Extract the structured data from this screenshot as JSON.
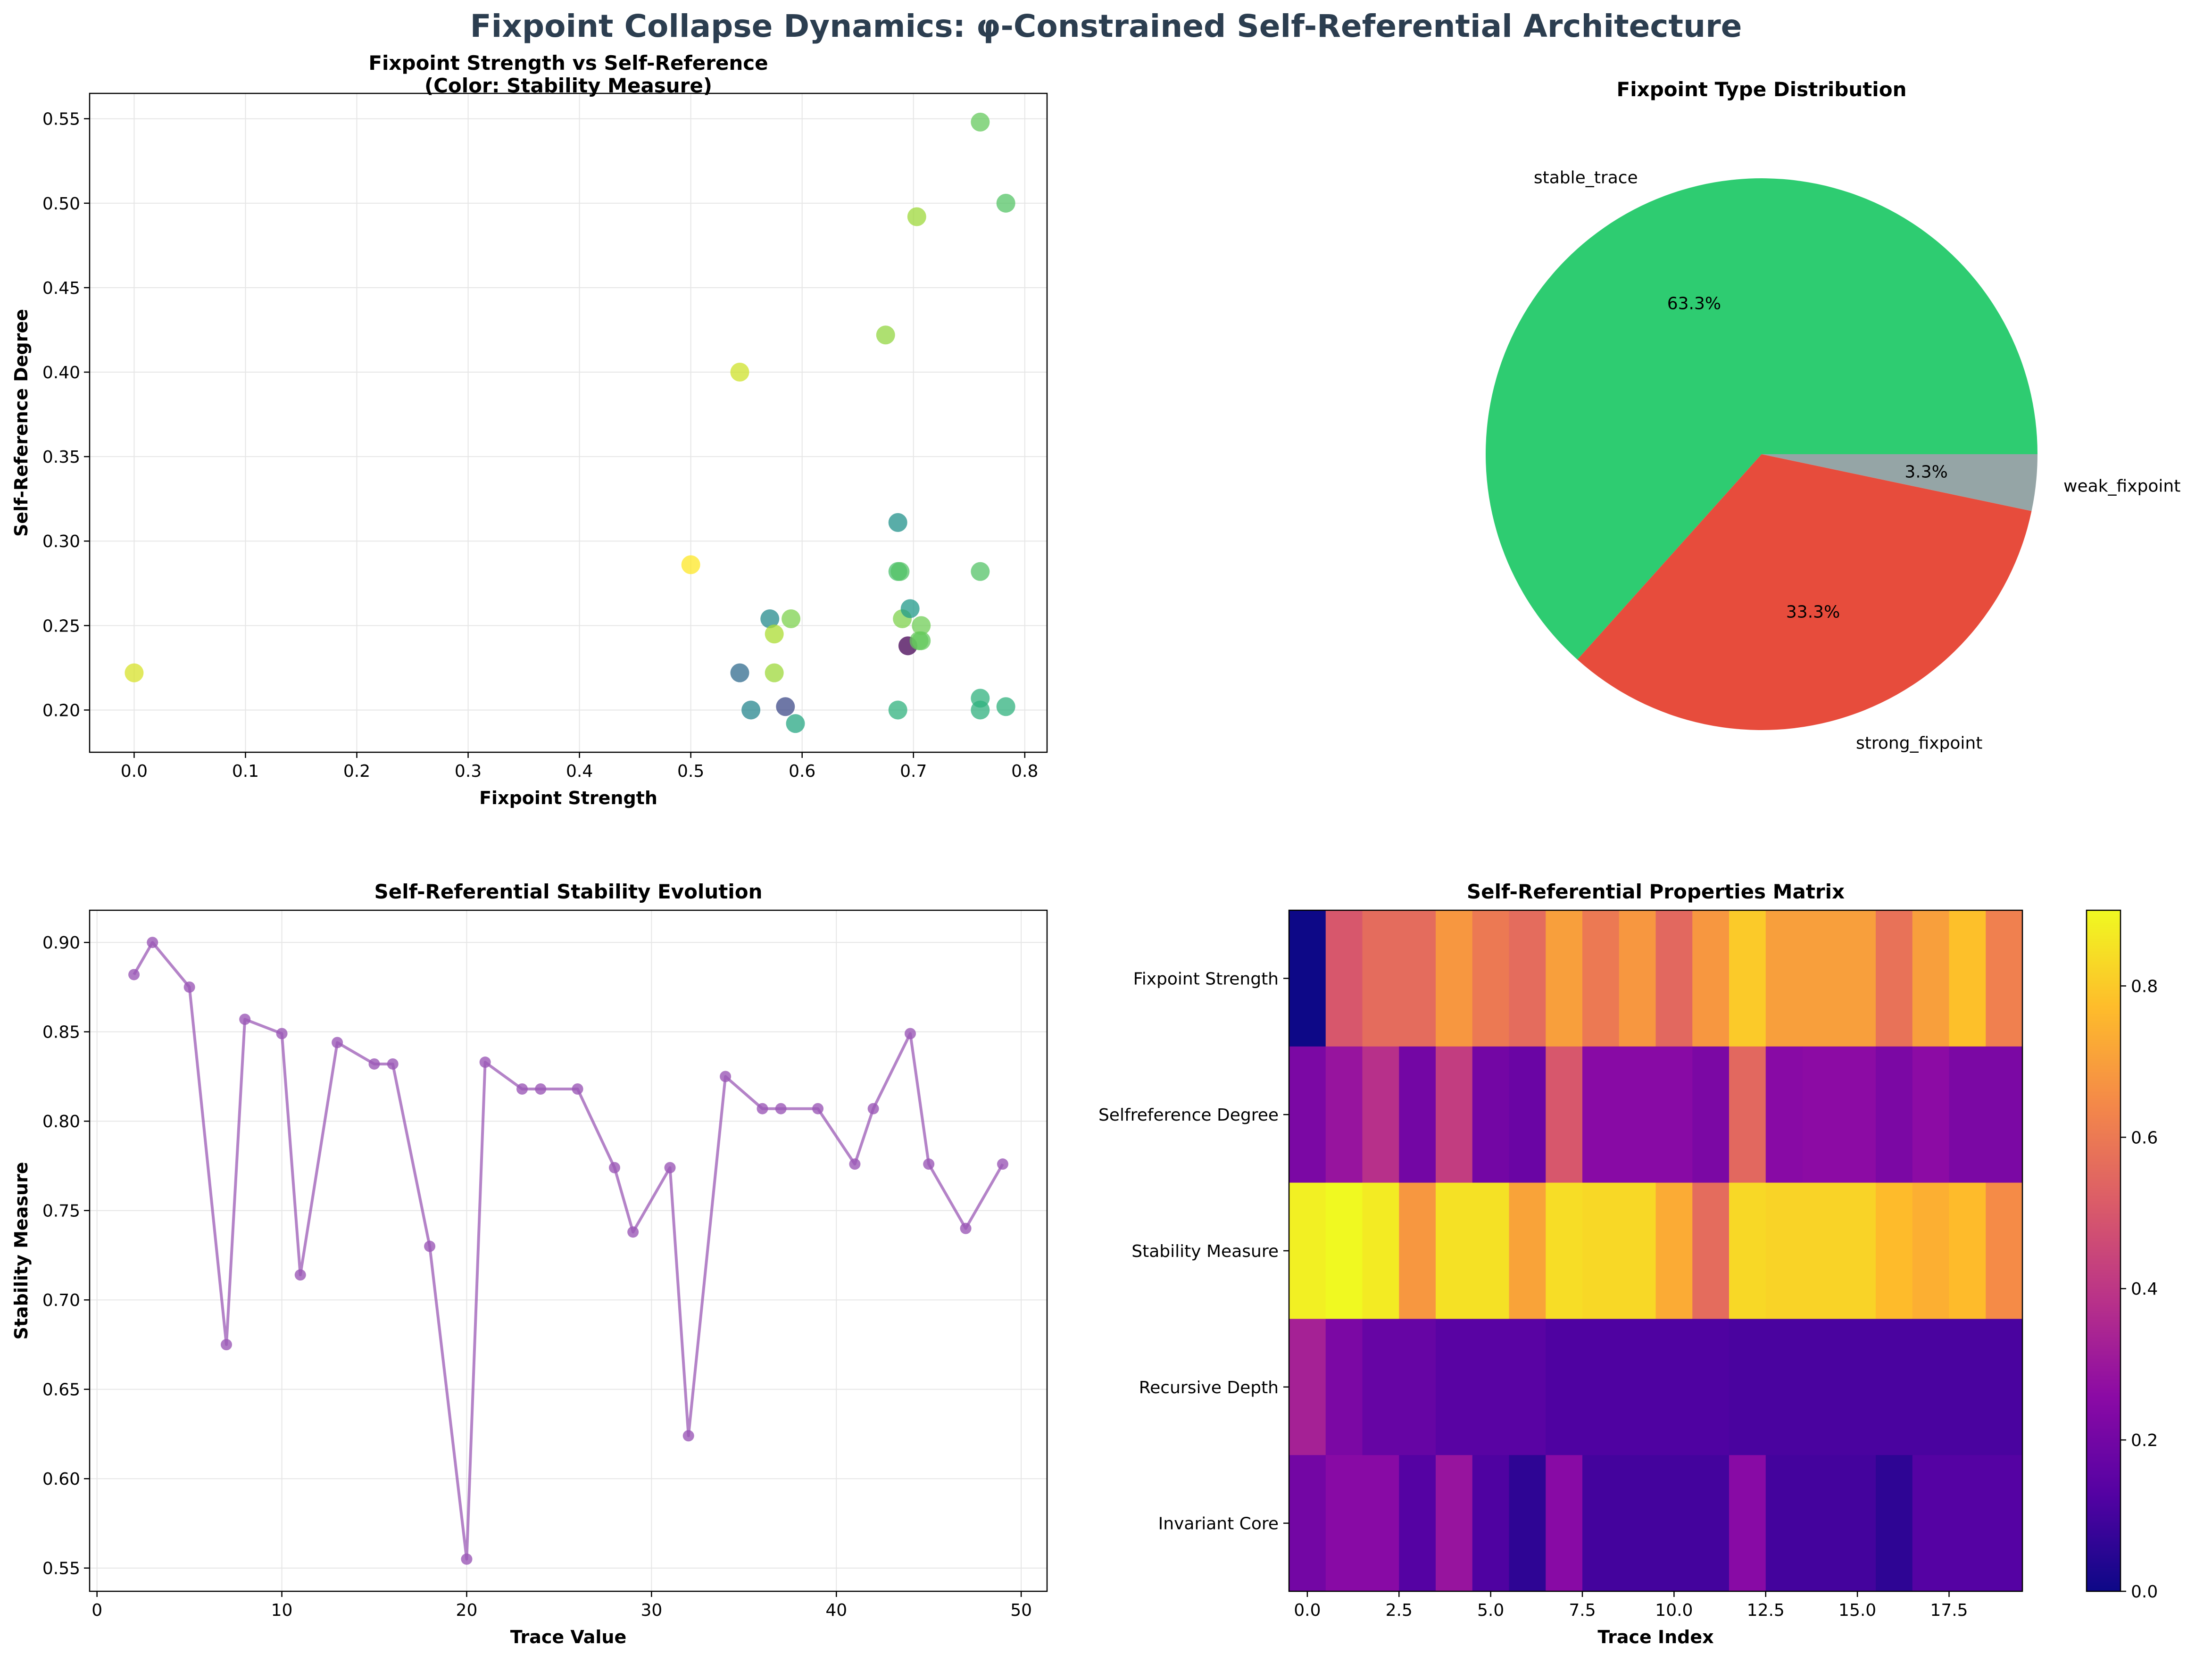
{
  "figure": {
    "suptitle": "Fixpoint Collapse Dynamics: φ-Constrained Self-Referential Architecture",
    "suptitle_color": "#2c3e50"
  },
  "chart_data": [
    {
      "id": "scatter",
      "type": "scatter",
      "title": "Fixpoint Strength vs Self-Reference\n(Color: Stability Measure)",
      "xlabel": "Fixpoint Strength",
      "ylabel": "Self-Reference Degree",
      "xlim": [
        -0.04,
        0.82
      ],
      "ylim": [
        0.175,
        0.565
      ],
      "xticks": [
        "0.0",
        "0.1",
        "0.2",
        "0.3",
        "0.4",
        "0.5",
        "0.6",
        "0.7",
        "0.8"
      ],
      "yticks": [
        "0.20",
        "0.25",
        "0.30",
        "0.35",
        "0.40",
        "0.45",
        "0.50",
        "0.55"
      ],
      "colormap": "viridis",
      "color_range": [
        0.555,
        0.9
      ],
      "points": [
        {
          "x": 0.0,
          "y": 0.222,
          "c": 0.88
        },
        {
          "x": 0.5,
          "y": 0.286,
          "c": 0.9
        },
        {
          "x": 0.544,
          "y": 0.4,
          "c": 0.875
        },
        {
          "x": 0.544,
          "y": 0.222,
          "c": 0.675
        },
        {
          "x": 0.554,
          "y": 0.2,
          "c": 0.714
        },
        {
          "x": 0.571,
          "y": 0.254,
          "c": 0.72
        },
        {
          "x": 0.575,
          "y": 0.245,
          "c": 0.857
        },
        {
          "x": 0.575,
          "y": 0.222,
          "c": 0.849
        },
        {
          "x": 0.585,
          "y": 0.202,
          "c": 0.63
        },
        {
          "x": 0.59,
          "y": 0.254,
          "c": 0.832
        },
        {
          "x": 0.594,
          "y": 0.192,
          "c": 0.76
        },
        {
          "x": 0.675,
          "y": 0.422,
          "c": 0.844
        },
        {
          "x": 0.686,
          "y": 0.311,
          "c": 0.73
        },
        {
          "x": 0.686,
          "y": 0.282,
          "c": 0.8
        },
        {
          "x": 0.688,
          "y": 0.282,
          "c": 0.806
        },
        {
          "x": 0.686,
          "y": 0.2,
          "c": 0.776
        },
        {
          "x": 0.69,
          "y": 0.254,
          "c": 0.833
        },
        {
          "x": 0.695,
          "y": 0.238,
          "c": 0.555
        },
        {
          "x": 0.697,
          "y": 0.26,
          "c": 0.74
        },
        {
          "x": 0.703,
          "y": 0.492,
          "c": 0.849
        },
        {
          "x": 0.705,
          "y": 0.241,
          "c": 0.818
        },
        {
          "x": 0.707,
          "y": 0.25,
          "c": 0.825
        },
        {
          "x": 0.707,
          "y": 0.241,
          "c": 0.818
        },
        {
          "x": 0.76,
          "y": 0.548,
          "c": 0.818
        },
        {
          "x": 0.76,
          "y": 0.282,
          "c": 0.806
        },
        {
          "x": 0.76,
          "y": 0.207,
          "c": 0.776
        },
        {
          "x": 0.76,
          "y": 0.2,
          "c": 0.774
        },
        {
          "x": 0.783,
          "y": 0.5,
          "c": 0.807
        },
        {
          "x": 0.783,
          "y": 0.202,
          "c": 0.776
        }
      ]
    },
    {
      "id": "pie",
      "type": "pie",
      "title": "Fixpoint Type Distribution",
      "slices": [
        {
          "label": "stable_trace",
          "value": 63.3,
          "pct": "63.3%",
          "color": "#2ecc71"
        },
        {
          "label": "strong_fixpoint",
          "value": 33.3,
          "pct": "33.3%",
          "color": "#e74c3c"
        },
        {
          "label": "weak_fixpoint",
          "value": 3.3,
          "pct": "3.3%",
          "color": "#95a5a6"
        }
      ]
    },
    {
      "id": "line",
      "type": "line",
      "title": "Self-Referential Stability Evolution",
      "xlabel": "Trace Value",
      "ylabel": "Stability Measure",
      "xlim": [
        -0.4,
        51.4
      ],
      "ylim": [
        0.537,
        0.918
      ],
      "xticks": [
        "0",
        "10",
        "20",
        "30",
        "40",
        "50"
      ],
      "yticks": [
        "0.55",
        "0.60",
        "0.65",
        "0.70",
        "0.75",
        "0.80",
        "0.85",
        "0.90"
      ],
      "color": "#9b59b6",
      "x": [
        2,
        3,
        5,
        7,
        8,
        10,
        11,
        13,
        15,
        16,
        18,
        20,
        21,
        23,
        24,
        26,
        28,
        29,
        31,
        32,
        34,
        36,
        37,
        39,
        41,
        42,
        44,
        45,
        47,
        49
      ],
      "y": [
        0.882,
        0.9,
        0.875,
        0.675,
        0.857,
        0.849,
        0.714,
        0.844,
        0.832,
        0.832,
        0.73,
        0.555,
        0.833,
        0.818,
        0.818,
        0.818,
        0.774,
        0.738,
        0.774,
        0.624,
        0.825,
        0.807,
        0.807,
        0.807,
        0.776,
        0.807,
        0.849,
        0.776,
        0.74,
        0.776
      ]
    },
    {
      "id": "heatmap",
      "type": "heatmap",
      "title": "Self-Referential Properties Matrix",
      "xlabel": "Trace Index",
      "xlim": [
        -0.5,
        19.5
      ],
      "xticks": [
        "0.0",
        "2.5",
        "5.0",
        "7.5",
        "10.0",
        "12.5",
        "15.0",
        "17.5"
      ],
      "rows": [
        "Fixpoint Strength",
        "Selfreference Degree",
        "Stability Measure",
        "Recursive Depth",
        "Invariant Core"
      ],
      "colormap": "plasma",
      "vmin": 0.0,
      "vmax": 0.9,
      "colorbar_ticks": [
        "0.0",
        "0.2",
        "0.4",
        "0.6",
        "0.8"
      ],
      "values": [
        [
          0.0,
          0.5,
          0.56,
          0.56,
          0.68,
          0.6,
          0.56,
          0.7,
          0.6,
          0.68,
          0.55,
          0.68,
          0.8,
          0.7,
          0.7,
          0.7,
          0.58,
          0.7,
          0.78,
          0.62
        ],
        [
          0.22,
          0.29,
          0.38,
          0.2,
          0.42,
          0.2,
          0.18,
          0.5,
          0.25,
          0.25,
          0.25,
          0.22,
          0.55,
          0.25,
          0.26,
          0.26,
          0.22,
          0.26,
          0.22,
          0.22
        ],
        [
          0.88,
          0.9,
          0.87,
          0.68,
          0.85,
          0.85,
          0.71,
          0.84,
          0.83,
          0.83,
          0.73,
          0.56,
          0.83,
          0.82,
          0.82,
          0.82,
          0.77,
          0.74,
          0.77,
          0.65
        ],
        [
          0.33,
          0.22,
          0.17,
          0.17,
          0.14,
          0.14,
          0.14,
          0.12,
          0.12,
          0.12,
          0.12,
          0.12,
          0.11,
          0.11,
          0.11,
          0.11,
          0.11,
          0.11,
          0.11,
          0.11
        ],
        [
          0.2,
          0.25,
          0.25,
          0.13,
          0.29,
          0.12,
          0.06,
          0.25,
          0.1,
          0.1,
          0.1,
          0.1,
          0.25,
          0.1,
          0.1,
          0.1,
          0.06,
          0.13,
          0.13,
          0.13
        ]
      ]
    }
  ]
}
